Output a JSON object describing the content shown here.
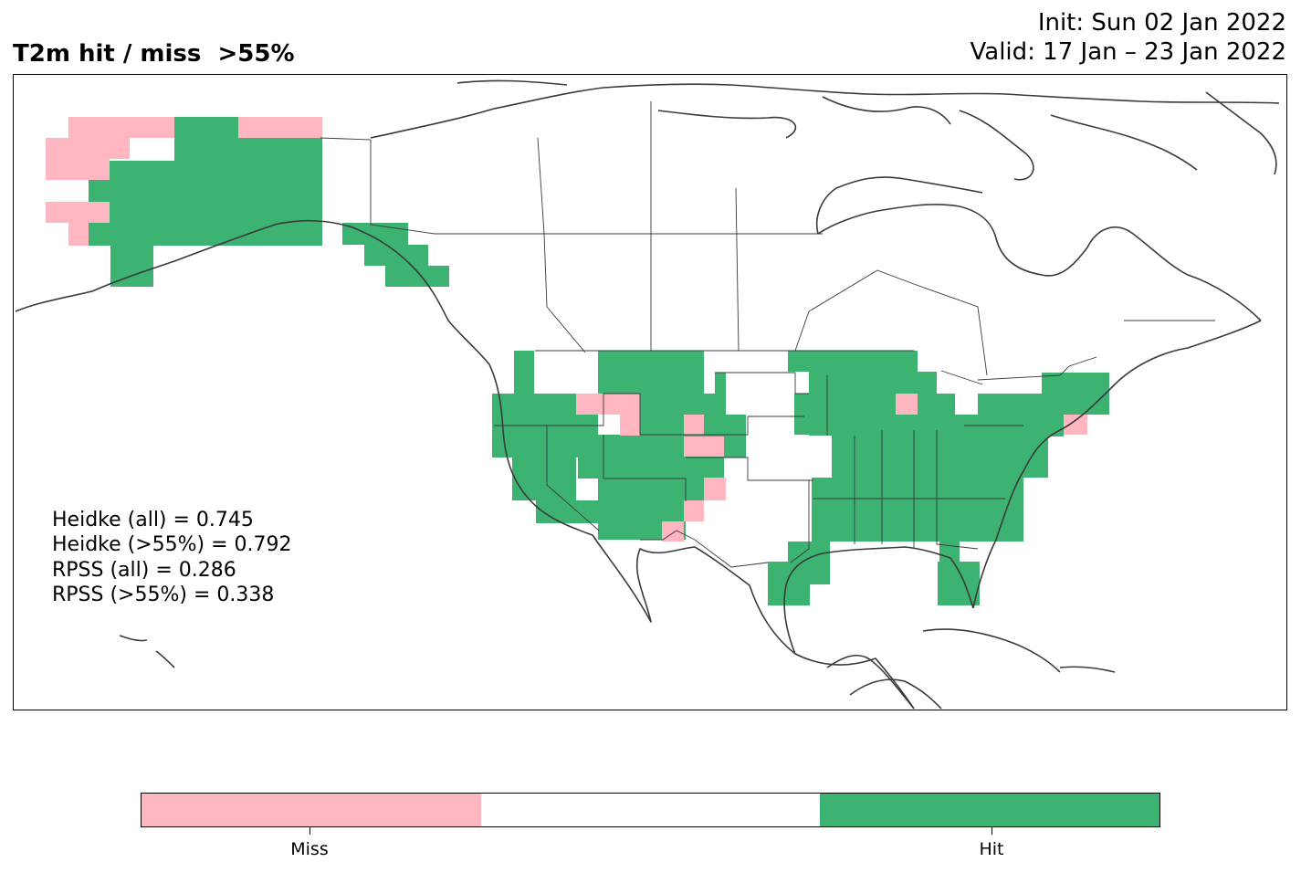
{
  "title": "T2m hit / miss  >55%",
  "init_text": "Init: Sun 02 Jan 2022",
  "valid_text": "Valid: 17 Jan – 23 Jan 2022",
  "stats": {
    "heidke_all": "Heidke (all) = 0.745",
    "heidke_55": "Heidke (>55%) = 0.792",
    "rpss_all": "RPSS (all) = 0.286",
    "rpss_55": "RPSS (>55%) = 0.338"
  },
  "colors": {
    "miss": "#ffb6c1",
    "neutral": "#ffffff",
    "hit": "#3cb371",
    "coastline": "#3a3a3a"
  },
  "colorbar": {
    "labels": [
      "Miss",
      "Hit"
    ]
  },
  "map_data": {
    "region": "North America",
    "cell_states": [
      "hit",
      "miss"
    ]
  }
}
